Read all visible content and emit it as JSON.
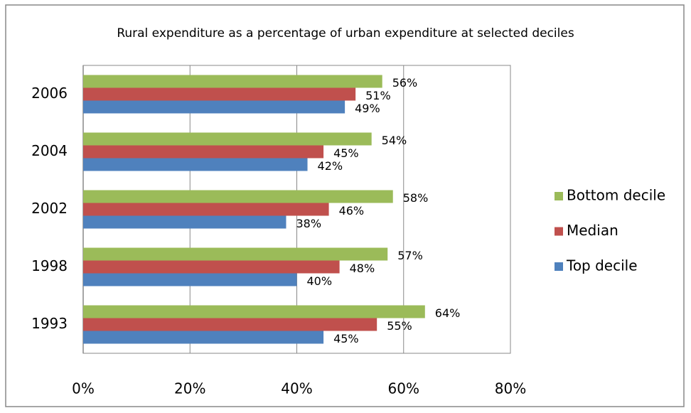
{
  "chart_data": {
    "type": "hbar",
    "title": "Rural expenditure as a percentage of urban expenditure at selected deciles",
    "categories": [
      "2006",
      "2004",
      "2002",
      "1998",
      "1993"
    ],
    "series": [
      {
        "name": "Bottom decile",
        "color": "#9bbb59",
        "values": [
          56,
          54,
          58,
          57,
          64
        ],
        "value_labels": [
          "56%",
          "54%",
          "58%",
          "57%",
          "64%"
        ]
      },
      {
        "name": "Median",
        "color": "#c0504d",
        "values": [
          51,
          45,
          46,
          48,
          55
        ],
        "value_labels": [
          "51%",
          "45%",
          "46%",
          "48%",
          "55%"
        ]
      },
      {
        "name": "Top decile",
        "color": "#4f81bd",
        "values": [
          49,
          42,
          38,
          40,
          45
        ],
        "value_labels": [
          "49%",
          "42%",
          "38%",
          "40%",
          "45%"
        ]
      }
    ],
    "xlim": [
      0,
      80
    ],
    "xticks": [
      {
        "value": 0,
        "label": "0%"
      },
      {
        "value": 20,
        "label": "20%"
      },
      {
        "value": 40,
        "label": "40%"
      },
      {
        "value": 60,
        "label": "60%"
      },
      {
        "value": 80,
        "label": "80%"
      }
    ],
    "grid": true,
    "legend": "right"
  }
}
